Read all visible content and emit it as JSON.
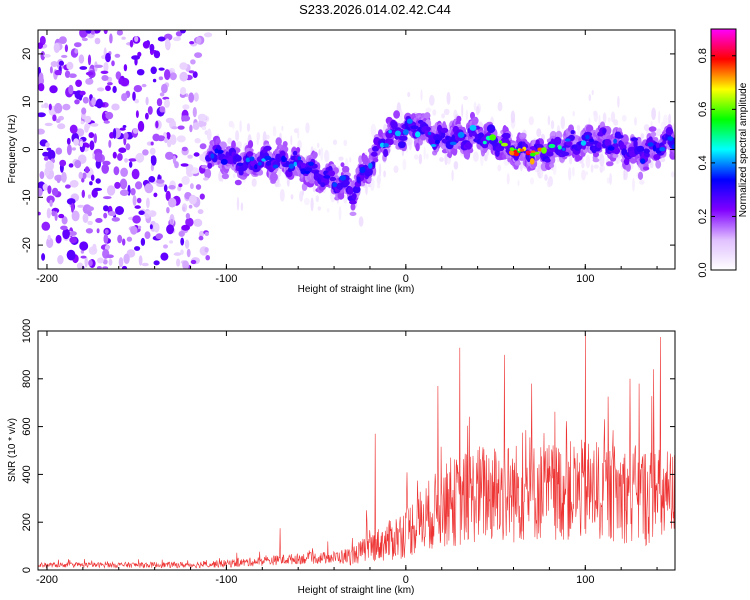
{
  "title": "S233.2026.014.02.42.C44",
  "chart_data": [
    {
      "type": "heatmap",
      "name": "spectrogram",
      "xlabel": "Height of straight line (km)",
      "ylabel": "Frequency (Hz)",
      "xlim": [
        -205,
        150
      ],
      "ylim": [
        -25,
        25
      ],
      "xticks": [
        -200,
        -100,
        0,
        100
      ],
      "xtick_labels": [
        "-200",
        "-100",
        "0",
        "100"
      ],
      "yticks": [
        -20,
        -10,
        0,
        10,
        20
      ],
      "ytick_labels": [
        "-20",
        "-10",
        "0",
        "10",
        "20"
      ],
      "colorbar": {
        "label": "Normalized spectral amplitude",
        "range": [
          0,
          0.9
        ],
        "ticks": [
          0.0,
          0.2,
          0.4,
          0.6,
          0.8
        ],
        "tick_labels": [
          "0.0",
          "0.2",
          "0.4",
          "0.6",
          "0.8"
        ],
        "colors": [
          "#ffffff",
          "#e0c0ff",
          "#8000ff",
          "#0000ff",
          "#00ffff",
          "#00ff00",
          "#ffff00",
          "#ff0000",
          "#ff00ff"
        ]
      },
      "ridge": {
        "x": [
          -110,
          -90,
          -70,
          -55,
          -45,
          -35,
          -30,
          -20,
          -10,
          0,
          5,
          20,
          40,
          60,
          75,
          90,
          110,
          130,
          150
        ],
        "freq": [
          -1,
          -3,
          -2,
          -4,
          -6,
          -7,
          -9,
          -3,
          3,
          4,
          5,
          2,
          3,
          0,
          -1,
          1,
          2,
          -1,
          2
        ],
        "peak_amp": [
          0.4,
          0.4,
          0.45,
          0.4,
          0.35,
          0.4,
          0.3,
          0.4,
          0.45,
          0.4,
          0.45,
          0.4,
          0.5,
          0.9,
          0.8,
          0.45,
          0.4,
          0.35,
          0.4
        ]
      },
      "noise_region": {
        "x": [
          -205,
          -110
        ],
        "amp": 0.15
      }
    },
    {
      "type": "line",
      "name": "snr",
      "xlabel": "Height of straight line (km)",
      "ylabel": "SNR (10 * v/v)",
      "xlim": [
        -205,
        150
      ],
      "ylim": [
        0,
        1000
      ],
      "xticks": [
        -200,
        -100,
        0,
        100
      ],
      "xtick_labels": [
        "-200",
        "-100",
        "0",
        "100"
      ],
      "yticks": [
        0,
        200,
        400,
        600,
        800,
        1000
      ],
      "ytick_labels": [
        "0",
        "200",
        "400",
        "600",
        "800",
        "1000"
      ],
      "color": "#ee3333",
      "envelope": {
        "x": [
          -205,
          -120,
          -100,
          -80,
          -60,
          -40,
          -30,
          -20,
          -10,
          0,
          10,
          20,
          30,
          40,
          50,
          60,
          80,
          100,
          120,
          140,
          150
        ],
        "baseline": [
          20,
          20,
          25,
          35,
          45,
          50,
          55,
          90,
          110,
          150,
          200,
          250,
          270,
          300,
          300,
          300,
          310,
          310,
          300,
          280,
          280
        ],
        "spread": [
          15,
          20,
          25,
          30,
          35,
          40,
          60,
          90,
          130,
          170,
          220,
          260,
          300,
          320,
          330,
          330,
          320,
          330,
          320,
          330,
          320
        ]
      },
      "spikes": [
        {
          "x": -70,
          "y": 175
        },
        {
          "x": -22,
          "y": 250
        },
        {
          "x": -17,
          "y": 570
        },
        {
          "x": 18,
          "y": 770
        },
        {
          "x": 30,
          "y": 930
        },
        {
          "x": 55,
          "y": 900
        },
        {
          "x": 70,
          "y": 780
        },
        {
          "x": 100,
          "y": 870
        },
        {
          "x": 100,
          "y": 990
        },
        {
          "x": 125,
          "y": 800
        },
        {
          "x": 130,
          "y": 780
        },
        {
          "x": 142,
          "y": 975
        },
        {
          "x": 138,
          "y": 840
        }
      ]
    }
  ]
}
